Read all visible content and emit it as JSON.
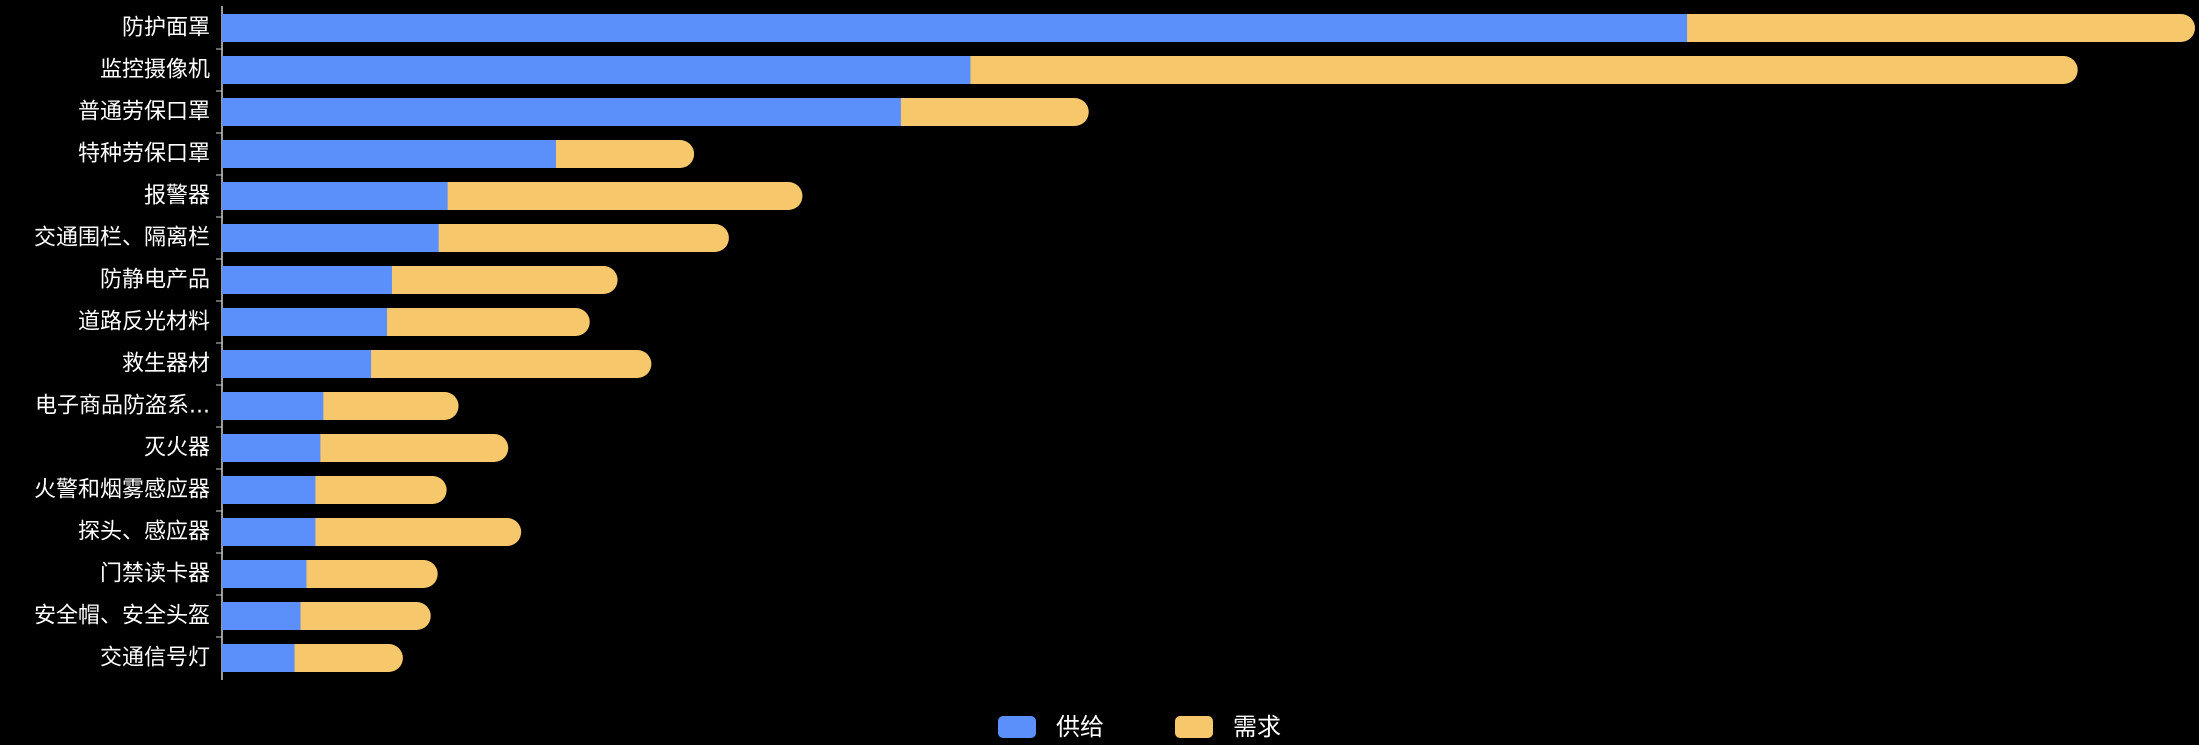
{
  "chart_data": {
    "type": "bar",
    "orientation": "horizontal",
    "stacked": true,
    "categories": [
      "防护面罩",
      "监控摄像机",
      "普通劳保口罩",
      "特种劳保口罩",
      "报警器",
      "交通围栏、隔离栏",
      "防静电产品",
      "道路反光材料",
      "救生器材",
      "电子商品防盗系...",
      "灭火器",
      "火警和烟雾感应器",
      "探头、感应器",
      "门禁读卡器",
      "安全帽、安全头盔",
      "交通信号灯"
    ],
    "series": [
      {
        "name": "供给",
        "color": "#5b8ff9",
        "values": [
          1474,
          753,
          683,
          336,
          227,
          218,
          171,
          166,
          150,
          102,
          99,
          94,
          94,
          85,
          79,
          73
        ]
      },
      {
        "name": "需求",
        "color": "#f6c86b",
        "values": [
          511,
          1114,
          189,
          139,
          357,
          292,
          227,
          204,
          282,
          136,
          189,
          132,
          207,
          132,
          131,
          109
        ]
      }
    ],
    "legend_position": "bottom-center",
    "grid": false
  },
  "legend": {
    "items": [
      {
        "label": "供给",
        "color": "#5b8ff9"
      },
      {
        "label": "需求",
        "color": "#f6c86b"
      }
    ]
  },
  "colors": {
    "background": "#000000",
    "text": "#ffffff",
    "axis": "#cccccc"
  }
}
